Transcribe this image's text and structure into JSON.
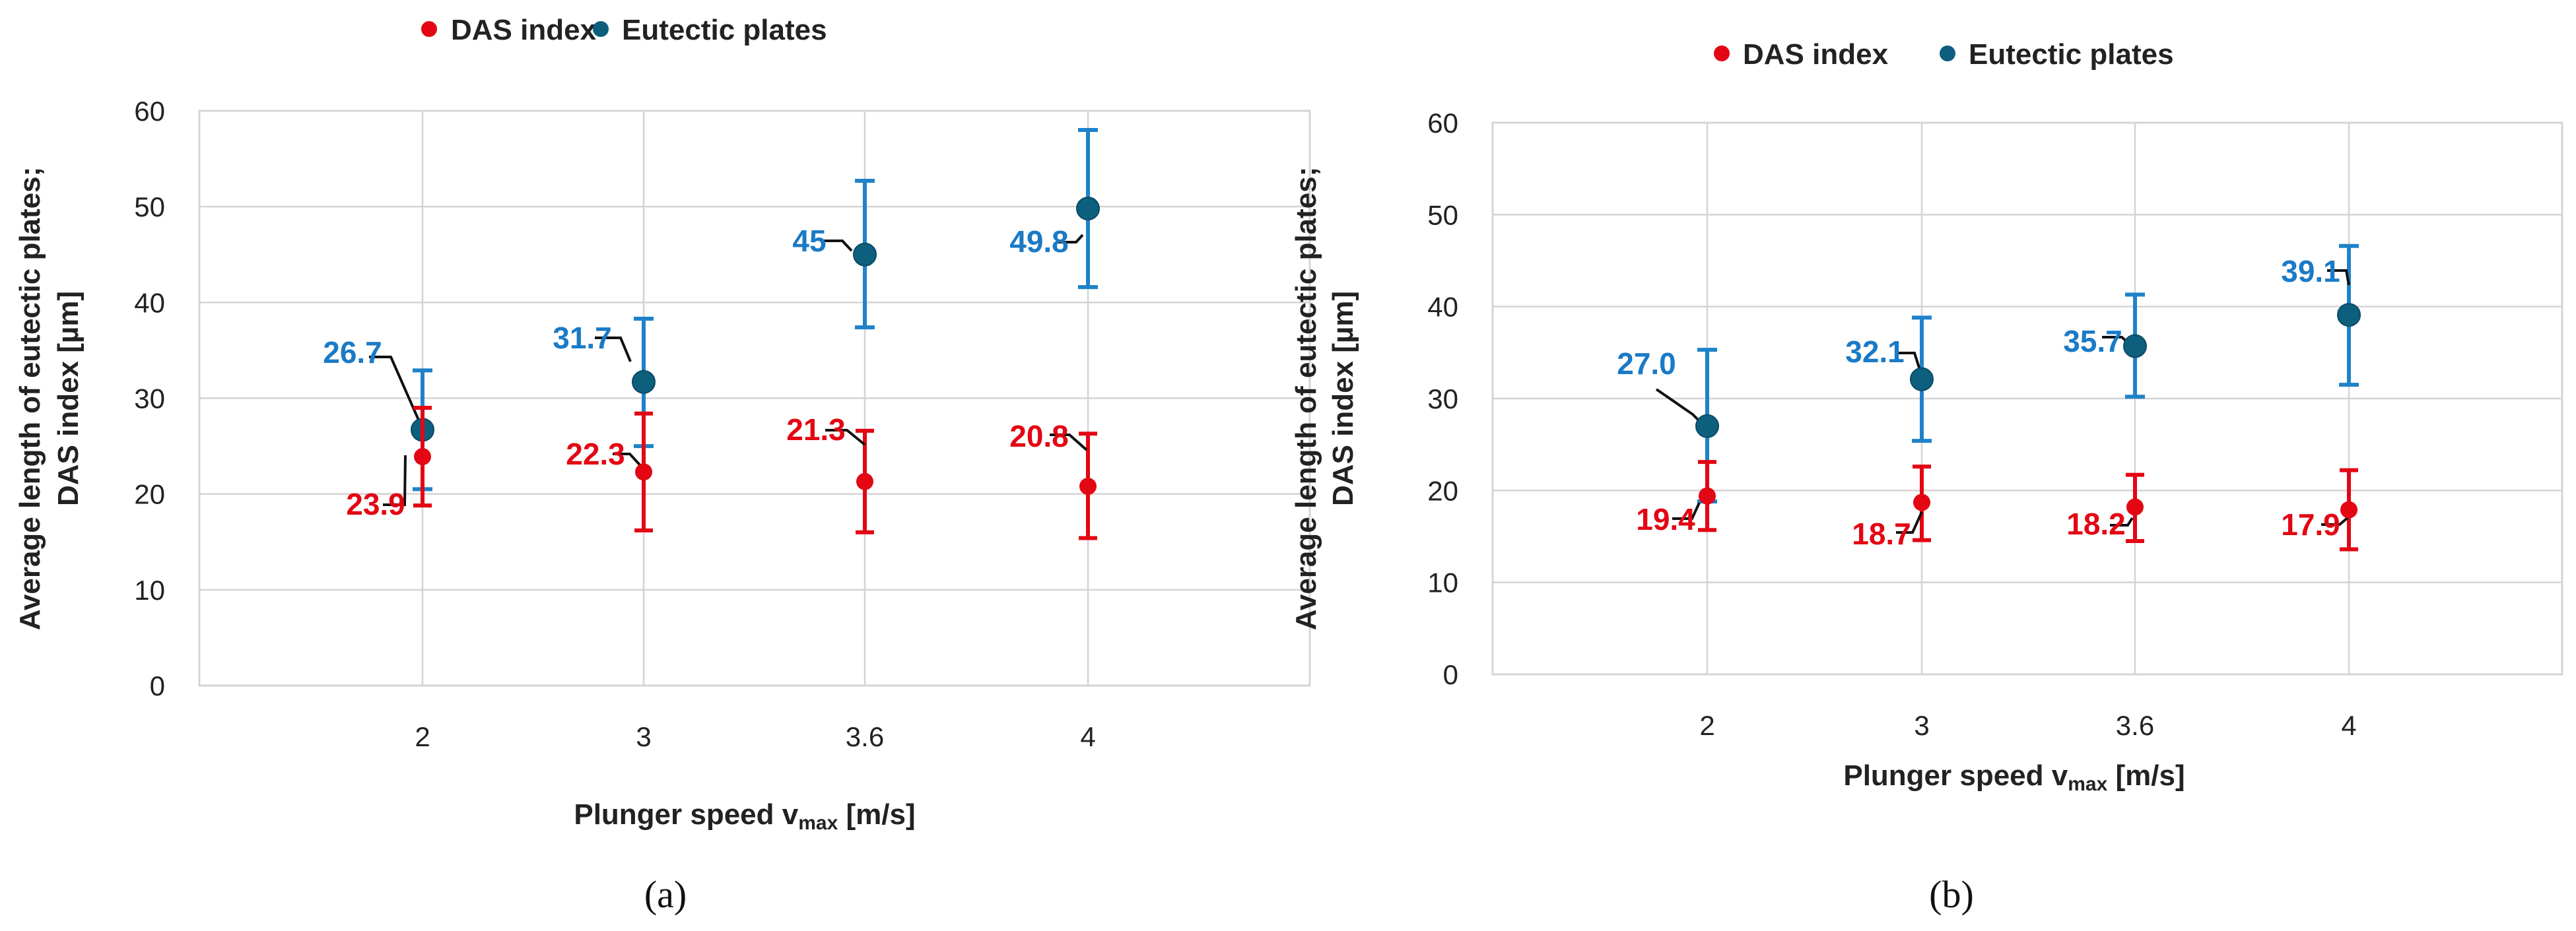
{
  "colors": {
    "das": "#e30613",
    "eutectic_marker": "#0d5f7e",
    "eutectic_bar": "#1f82c9",
    "eutectic_label": "#1a7ac6",
    "grid": "#d4d4d4",
    "leader": "#111111"
  },
  "chart_data": [
    {
      "type": "scatter",
      "caption": "(a)",
      "legend": [
        "DAS index",
        "Eutectic plates"
      ],
      "legend_position": "top-center",
      "xlabel_main": "Plunger speed v",
      "xlabel_sub": "max",
      "xlabel_unit": " [m/s]",
      "ylabel_lines": [
        "Average length of eutectic plates;",
        "DAS index [µm]"
      ],
      "categories": [
        "2",
        "3",
        "3.6",
        "4"
      ],
      "ylim": [
        0,
        60
      ],
      "yticks": [
        "0",
        "10",
        "20",
        "30",
        "40",
        "50",
        "60"
      ],
      "grid": true,
      "series": [
        {
          "name": "DAS index",
          "values": [
            23.9,
            22.3,
            21.3,
            20.8
          ],
          "labels": [
            "23.9",
            "22.3",
            "21.3",
            "20.8"
          ],
          "err_low": [
            18.8,
            16.2,
            16.0,
            15.4
          ],
          "err_high": [
            29.0,
            28.4,
            26.6,
            26.3
          ]
        },
        {
          "name": "Eutectic plates",
          "values": [
            26.7,
            31.7,
            45.0,
            49.8
          ],
          "labels": [
            "26.7",
            "31.7",
            "45",
            "49.8"
          ],
          "err_low": [
            20.5,
            25.0,
            37.4,
            41.6
          ],
          "err_high": [
            32.9,
            38.3,
            52.7,
            58.0
          ]
        }
      ]
    },
    {
      "type": "scatter",
      "caption": "(b)",
      "legend": [
        "DAS index",
        "Eutectic plates"
      ],
      "legend_position": "top-center",
      "xlabel_main": "Plunger speed v",
      "xlabel_sub": "max",
      "xlabel_unit": " [m/s]",
      "ylabel_lines": [
        "Average length of eutectic plates;",
        "DAS index [µm]"
      ],
      "categories": [
        "2",
        "3",
        "3.6",
        "4"
      ],
      "ylim": [
        0,
        60
      ],
      "yticks": [
        "0",
        "10",
        "20",
        "30",
        "40",
        "50",
        "60"
      ],
      "grid": true,
      "series": [
        {
          "name": "DAS index",
          "values": [
            19.4,
            18.7,
            18.2,
            17.9
          ],
          "labels": [
            "19.4",
            "18.7",
            "18.2",
            "17.9"
          ],
          "err_low": [
            15.7,
            14.6,
            14.5,
            13.6
          ],
          "err_high": [
            23.1,
            22.6,
            21.7,
            22.2
          ]
        },
        {
          "name": "Eutectic plates",
          "values": [
            27.0,
            32.1,
            35.7,
            39.1
          ],
          "labels": [
            "27.0",
            "32.1",
            "35.7",
            "39.1"
          ],
          "err_low": [
            18.8,
            25.4,
            30.2,
            31.5
          ],
          "err_high": [
            35.3,
            38.8,
            41.3,
            46.6
          ]
        }
      ]
    }
  ]
}
